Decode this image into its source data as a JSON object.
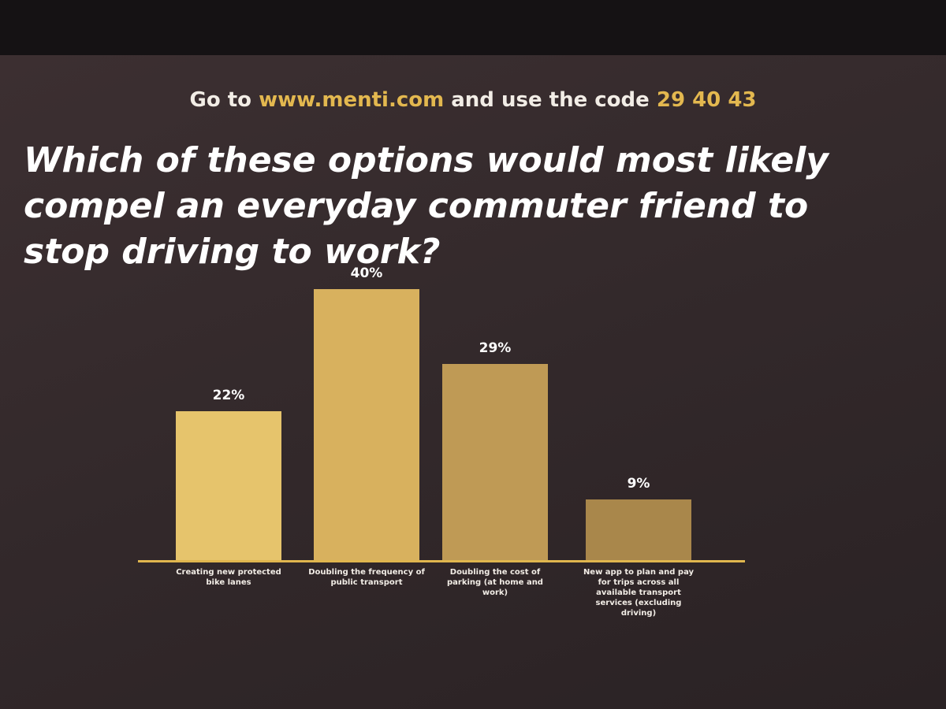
{
  "header": {
    "prefix": "Go to",
    "url": "www.menti.com",
    "middle": "and use the code",
    "code": "29 40 43"
  },
  "chart_data": {
    "type": "bar",
    "title": "Which of these options would most likely compel an everyday commuter friend to stop driving to work?",
    "categories": [
      "Creating new protected bike lanes",
      "Doubling the frequency of public transport",
      "Doubling the cost of parking (at home and work)",
      "New app to plan and pay for trips across all available transport services (excluding driving)"
    ],
    "values": [
      22,
      40,
      29,
      9
    ],
    "value_labels": [
      "22%",
      "40%",
      "29%",
      "9%"
    ],
    "colors": [
      "#e6c46c",
      "#d8b15e",
      "#bf9a55",
      "#a9874b"
    ]
  }
}
